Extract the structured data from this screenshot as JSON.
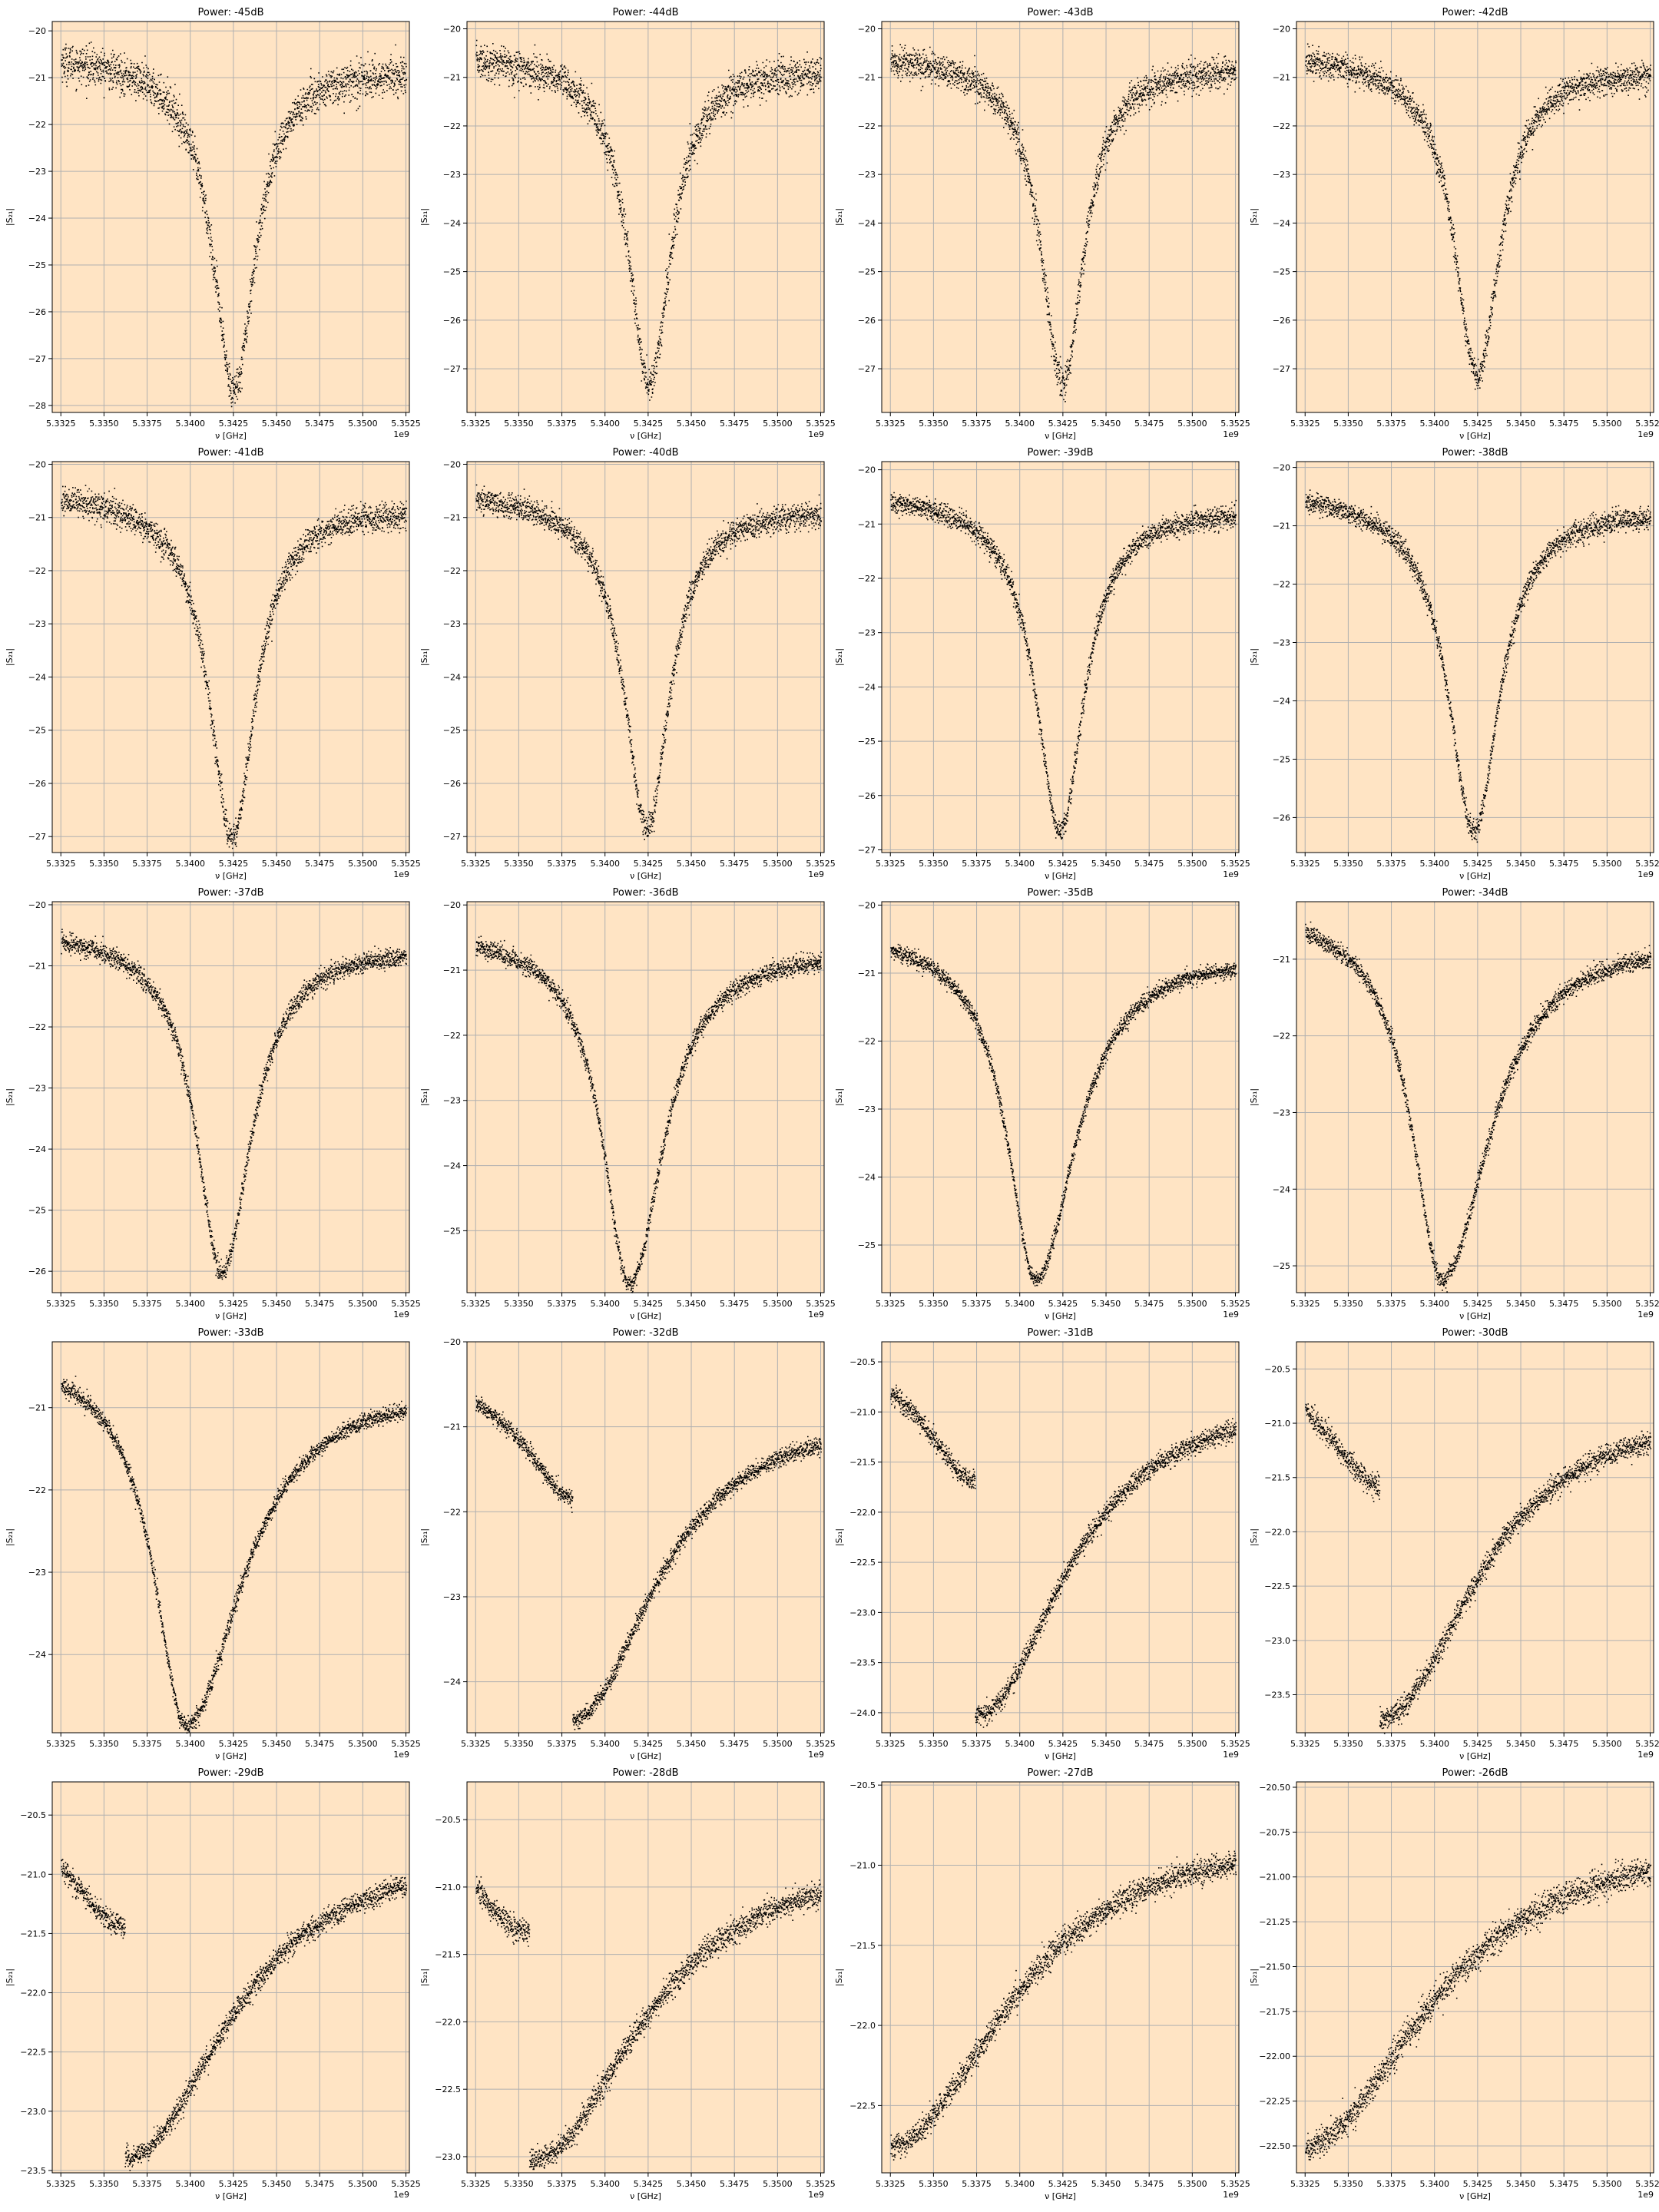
{
  "figure": {
    "background": "#ffffff",
    "axes_facecolor": "#ffe4c4",
    "marker_color": "#000000",
    "grid_color": "#b0b0b0"
  },
  "chart_data": [
    {
      "type": "scatter",
      "title": "Power: -45dB",
      "xlabel": "ν [GHz]",
      "ylabel": "|S₂₁|",
      "x_offset_label": "1e9",
      "xlim": [
        5332000000.0,
        5352700000.0
      ],
      "ylim": [
        -28.15,
        -19.8
      ],
      "xticks": [
        "5.3325",
        "5.3350",
        "5.3375",
        "5.3400",
        "5.3425",
        "5.3450",
        "5.3475",
        "5.3500",
        "5.3525"
      ],
      "yticks": [
        "-20",
        "-21",
        "-22",
        "-23",
        "-24",
        "-25",
        "-26",
        "-27",
        "-28"
      ],
      "model": {
        "f0": 5342500000.0,
        "hwhm": 1500000.0,
        "base_left": -20.5,
        "base_right": -20.8,
        "depth": 7.0,
        "noise": 0.2,
        "bifurcation": false
      },
      "grid": true
    },
    {
      "type": "scatter",
      "title": "Power: -44dB",
      "xlabel": "ν [GHz]",
      "ylabel": "|S₂₁|",
      "x_offset_label": "1e9",
      "xlim": [
        5332000000.0,
        5352700000.0
      ],
      "ylim": [
        -27.9,
        -19.85
      ],
      "xticks": [
        "5.3325",
        "5.3350",
        "5.3375",
        "5.3400",
        "5.3425",
        "5.3450",
        "5.3475",
        "5.3500",
        "5.3525"
      ],
      "yticks": [
        "-20",
        "-21",
        "-22",
        "-23",
        "-24",
        "-25",
        "-26",
        "-27"
      ],
      "model": {
        "f0": 5342550000.0,
        "hwhm": 1500000.0,
        "base_left": -20.5,
        "base_right": -20.75,
        "depth": 6.7,
        "noise": 0.18,
        "bifurcation": false
      },
      "grid": true
    },
    {
      "type": "scatter",
      "title": "Power: -43dB",
      "xlabel": "ν [GHz]",
      "ylabel": "|S₂₁|",
      "x_offset_label": "1e9",
      "xlim": [
        5332000000.0,
        5352700000.0
      ],
      "ylim": [
        -27.9,
        -19.85
      ],
      "xticks": [
        "5.3325",
        "5.3350",
        "5.3375",
        "5.3400",
        "5.3425",
        "5.3450",
        "5.3475",
        "5.3500",
        "5.3525"
      ],
      "yticks": [
        "-20",
        "-21",
        "-22",
        "-23",
        "-24",
        "-25",
        "-26",
        "-27"
      ],
      "model": {
        "f0": 5342450000.0,
        "hwhm": 1500000.0,
        "base_left": -20.5,
        "base_right": -20.75,
        "depth": 6.7,
        "noise": 0.16,
        "bifurcation": false
      },
      "grid": true
    },
    {
      "type": "scatter",
      "title": "Power: -42dB",
      "xlabel": "ν [GHz]",
      "ylabel": "|S₂₁|",
      "x_offset_label": "1e9",
      "xlim": [
        5332000000.0,
        5352700000.0
      ],
      "ylim": [
        -27.9,
        -19.85
      ],
      "xticks": [
        "5.3325",
        "5.3350",
        "5.3375",
        "5.3400",
        "5.3425",
        "5.3450",
        "5.3475",
        "5.3500",
        "5.3525"
      ],
      "yticks": [
        "-20",
        "-21",
        "-22",
        "-23",
        "-24",
        "-25",
        "-26",
        "-27"
      ],
      "model": {
        "f0": 5342450000.0,
        "hwhm": 1600000.0,
        "base_left": -20.5,
        "base_right": -20.8,
        "depth": 6.5,
        "noise": 0.15,
        "bifurcation": false
      },
      "grid": true
    },
    {
      "type": "scatter",
      "title": "Power: -41dB",
      "xlabel": "ν [GHz]",
      "ylabel": "|S₂₁|",
      "x_offset_label": "1e9",
      "xlim": [
        5332000000.0,
        5352700000.0
      ],
      "ylim": [
        -27.3,
        -19.95
      ],
      "xticks": [
        "5.3325",
        "5.3350",
        "5.3375",
        "5.3400",
        "5.3425",
        "5.3450",
        "5.3475",
        "5.3500",
        "5.3525"
      ],
      "yticks": [
        "-20",
        "-21",
        "-22",
        "-23",
        "-24",
        "-25",
        "-26",
        "-27"
      ],
      "model": {
        "f0": 5342400000.0,
        "hwhm": 1600000.0,
        "base_left": -20.5,
        "base_right": -20.8,
        "depth": 6.4,
        "noise": 0.13,
        "bifurcation": false
      },
      "grid": true
    },
    {
      "type": "scatter",
      "title": "Power: -40dB",
      "xlabel": "ν [GHz]",
      "ylabel": "|S₂₁|",
      "x_offset_label": "1e9",
      "xlim": [
        5332000000.0,
        5352700000.0
      ],
      "ylim": [
        -27.3,
        -19.95
      ],
      "xticks": [
        "5.3325",
        "5.3350",
        "5.3375",
        "5.3400",
        "5.3425",
        "5.3450",
        "5.3475",
        "5.3500",
        "5.3525"
      ],
      "yticks": [
        "-20",
        "-21",
        "-22",
        "-23",
        "-24",
        "-25",
        "-26",
        "-27"
      ],
      "model": {
        "f0": 5342400000.0,
        "hwhm": 1600000.0,
        "base_left": -20.5,
        "base_right": -20.8,
        "depth": 6.2,
        "noise": 0.12,
        "bifurcation": false
      },
      "grid": true
    },
    {
      "type": "scatter",
      "title": "Power: -39dB",
      "xlabel": "ν [GHz]",
      "ylabel": "|S₂₁|",
      "x_offset_label": "1e9",
      "xlim": [
        5332000000.0,
        5352700000.0
      ],
      "ylim": [
        -27.05,
        -19.85
      ],
      "xticks": [
        "5.3325",
        "5.3350",
        "5.3375",
        "5.3400",
        "5.3425",
        "5.3450",
        "5.3475",
        "5.3500",
        "5.3525"
      ],
      "yticks": [
        "-20",
        "-21",
        "-22",
        "-23",
        "-24",
        "-25",
        "-26",
        "-27"
      ],
      "model": {
        "f0": 5342300000.0,
        "hwhm": 1700000.0,
        "base_left": -20.4,
        "base_right": -20.7,
        "depth": 6.1,
        "noise": 0.1,
        "bifurcation": false
      },
      "grid": true
    },
    {
      "type": "scatter",
      "title": "Power: -38dB",
      "xlabel": "ν [GHz]",
      "ylabel": "|S₂₁|",
      "x_offset_label": "1e9",
      "xlim": [
        5332000000.0,
        5352700000.0
      ],
      "ylim": [
        -26.6,
        -19.9
      ],
      "xticks": [
        "5.3325",
        "5.3350",
        "5.3375",
        "5.3400",
        "5.3425",
        "5.3450",
        "5.3475",
        "5.3500",
        "5.3525"
      ],
      "yticks": [
        "-20",
        "-21",
        "-22",
        "-23",
        "-24",
        "-25",
        "-26"
      ],
      "model": {
        "f0": 5342250000.0,
        "hwhm": 1800000.0,
        "base_left": -20.4,
        "base_right": -20.7,
        "depth": 5.7,
        "noise": 0.09,
        "bifurcation": false
      },
      "grid": true
    },
    {
      "type": "scatter",
      "title": "Power: -37dB",
      "xlabel": "ν [GHz]",
      "ylabel": "|S₂₁|",
      "x_offset_label": "1e9",
      "xlim": [
        5332000000.0,
        5352700000.0
      ],
      "ylim": [
        -26.35,
        -19.95
      ],
      "xticks": [
        "5.3325",
        "5.3350",
        "5.3375",
        "5.3400",
        "5.3425",
        "5.3450",
        "5.3475",
        "5.3500",
        "5.3525"
      ],
      "yticks": [
        "-20",
        "-21",
        "-22",
        "-23",
        "-24",
        "-25",
        "-26"
      ],
      "model": {
        "f0": 5341800000.0,
        "hwhm": 1800000.0,
        "base_left": -20.4,
        "base_right": -20.65,
        "depth": 5.5,
        "noise": 0.08,
        "bifurcation": false,
        "skew": 0.3
      },
      "grid": true
    },
    {
      "type": "scatter",
      "title": "Power: -36dB",
      "xlabel": "ν [GHz]",
      "ylabel": "|S₂₁|",
      "x_offset_label": "1e9",
      "xlim": [
        5332000000.0,
        5352700000.0
      ],
      "ylim": [
        -25.95,
        -19.95
      ],
      "xticks": [
        "5.3325",
        "5.3350",
        "5.3375",
        "5.3400",
        "5.3425",
        "5.3450",
        "5.3475",
        "5.3500",
        "5.3525"
      ],
      "yticks": [
        "-20",
        "-21",
        "-22",
        "-23",
        "-24",
        "-25"
      ],
      "model": {
        "f0": 5341400000.0,
        "hwhm": 1900000.0,
        "base_left": -20.4,
        "base_right": -20.65,
        "depth": 5.3,
        "noise": 0.07,
        "bifurcation": false,
        "skew": 0.5
      },
      "grid": true
    },
    {
      "type": "scatter",
      "title": "Power: -35dB",
      "xlabel": "ν [GHz]",
      "ylabel": "|S₂₁|",
      "x_offset_label": "1e9",
      "xlim": [
        5332000000.0,
        5352700000.0
      ],
      "ylim": [
        -25.7,
        -19.95
      ],
      "xticks": [
        "5.3325",
        "5.3350",
        "5.3375",
        "5.3400",
        "5.3425",
        "5.3450",
        "5.3475",
        "5.3500",
        "5.3525"
      ],
      "yticks": [
        "-20",
        "-21",
        "-22",
        "-23",
        "-24",
        "-25"
      ],
      "model": {
        "f0": 5340900000.0,
        "hwhm": 2000000.0,
        "base_left": -20.4,
        "base_right": -20.65,
        "depth": 5.0,
        "noise": 0.06,
        "bifurcation": false,
        "skew": 0.8
      },
      "grid": true
    },
    {
      "type": "scatter",
      "title": "Power: -34dB",
      "xlabel": "ν [GHz]",
      "ylabel": "|S₂₁|",
      "x_offset_label": "1e9",
      "xlim": [
        5332000000.0,
        5352700000.0
      ],
      "ylim": [
        -25.35,
        -20.25
      ],
      "xticks": [
        "5.3325",
        "5.3350",
        "5.3375",
        "5.3400",
        "5.3425",
        "5.3450",
        "5.3475",
        "5.3500",
        "5.3525"
      ],
      "yticks": [
        "-21",
        "-22",
        "-23",
        "-24",
        "-25"
      ],
      "model": {
        "f0": 5340400000.0,
        "hwhm": 2100000.0,
        "base_left": -20.35,
        "base_right": -20.65,
        "depth": 4.7,
        "noise": 0.06,
        "bifurcation": false,
        "skew": 1.2
      },
      "grid": true
    },
    {
      "type": "scatter",
      "title": "Power: -33dB",
      "xlabel": "ν [GHz]",
      "ylabel": "|S₂₁|",
      "x_offset_label": "1e9",
      "xlim": [
        5332000000.0,
        5352700000.0
      ],
      "ylim": [
        -24.95,
        -20.2
      ],
      "xticks": [
        "5.3325",
        "5.3350",
        "5.3375",
        "5.3400",
        "5.3425",
        "5.3450",
        "5.3475",
        "5.3500",
        "5.3525"
      ],
      "yticks": [
        "-21",
        "-22",
        "-23",
        "-24"
      ],
      "model": {
        "f0": 5339700000.0,
        "hwhm": 2200000.0,
        "base_left": -20.35,
        "base_right": -20.65,
        "depth": 4.4,
        "noise": 0.05,
        "bifurcation": false,
        "skew": 1.6
      },
      "grid": true
    },
    {
      "type": "scatter",
      "title": "Power: -32dB",
      "xlabel": "ν [GHz]",
      "ylabel": "|S₂₁|",
      "x_offset_label": "1e9",
      "xlim": [
        5332000000.0,
        5352700000.0
      ],
      "ylim": [
        -24.6,
        -20.0
      ],
      "xticks": [
        "5.3325",
        "5.3350",
        "5.3375",
        "5.3400",
        "5.3425",
        "5.3450",
        "5.3475",
        "5.3500",
        "5.3525"
      ],
      "yticks": [
        "-20",
        "-21",
        "-22",
        "-23",
        "-24"
      ],
      "model": {
        "f0": 5339000000.0,
        "hwhm": 2400000.0,
        "base_left": -20.35,
        "base_right": -20.65,
        "depth": 4.0,
        "noise": 0.05,
        "bifurcation": true,
        "jump": 5338100000.0
      },
      "grid": true
    },
    {
      "type": "scatter",
      "title": "Power: -31dB",
      "xlabel": "ν [GHz]",
      "ylabel": "|S₂₁|",
      "x_offset_label": "1e9",
      "xlim": [
        5332000000.0,
        5352700000.0
      ],
      "ylim": [
        -24.2,
        -20.3
      ],
      "xticks": [
        "5.3325",
        "5.3350",
        "5.3375",
        "5.3400",
        "5.3425",
        "5.3450",
        "5.3475",
        "5.3500",
        "5.3525"
      ],
      "yticks": [
        "-20.5",
        "-21.0",
        "-21.5",
        "-22.0",
        "-22.5",
        "-23.0",
        "-23.5",
        "-24.0"
      ],
      "model": {
        "f0": 5338200000.0,
        "hwhm": 2600000.0,
        "base_left": -20.35,
        "base_right": -20.65,
        "depth": 3.6,
        "noise": 0.05,
        "bifurcation": true,
        "jump": 5337400000.0
      },
      "grid": true
    },
    {
      "type": "scatter",
      "title": "Power: -30dB",
      "xlabel": "ν [GHz]",
      "ylabel": "|S₂₁|",
      "x_offset_label": "1e9",
      "xlim": [
        5332000000.0,
        5352700000.0
      ],
      "ylim": [
        -23.85,
        -20.25
      ],
      "xticks": [
        "5.3325",
        "5.3350",
        "5.3375",
        "5.3400",
        "5.3425",
        "5.3450",
        "5.3475",
        "5.3500",
        "5.3525"
      ],
      "yticks": [
        "-20.5",
        "-21.0",
        "-21.5",
        "-22.0",
        "-22.5",
        "-23.0",
        "-23.5"
      ],
      "model": {
        "f0": 5337600000.0,
        "hwhm": 2800000.0,
        "base_left": -20.35,
        "base_right": -20.65,
        "depth": 3.3,
        "noise": 0.05,
        "bifurcation": true,
        "jump": 5336800000.0
      },
      "grid": true
    },
    {
      "type": "scatter",
      "title": "Power: -29dB",
      "xlabel": "ν [GHz]",
      "ylabel": "|S₂₁|",
      "x_offset_label": "1e9",
      "xlim": [
        5332000000.0,
        5352700000.0
      ],
      "ylim": [
        -23.52,
        -20.22
      ],
      "xticks": [
        "5.3325",
        "5.3350",
        "5.3375",
        "5.3400",
        "5.3425",
        "5.3450",
        "5.3475",
        "5.3500",
        "5.3525"
      ],
      "yticks": [
        "-20.5",
        "-21.0",
        "-21.5",
        "-22.0",
        "-22.5",
        "-23.0",
        "-23.5"
      ],
      "model": {
        "f0": 5337000000.0,
        "hwhm": 3000000.0,
        "base_left": -20.35,
        "base_right": -20.6,
        "depth": 3.0,
        "noise": 0.045,
        "bifurcation": true,
        "jump": 5336200000.0
      },
      "grid": true
    },
    {
      "type": "scatter",
      "title": "Power: -28dB",
      "xlabel": "ν [GHz]",
      "ylabel": "|S₂₁|",
      "x_offset_label": "1e9",
      "xlim": [
        5332000000.0,
        5352700000.0
      ],
      "ylim": [
        -23.12,
        -20.22
      ],
      "xticks": [
        "5.3325",
        "5.3350",
        "5.3375",
        "5.3400",
        "5.3425",
        "5.3450",
        "5.3475",
        "5.3500",
        "5.3525"
      ],
      "yticks": [
        "-20.5",
        "-21.0",
        "-21.5",
        "-22.0",
        "-22.5",
        "-23.0"
      ],
      "model": {
        "f0": 5336400000.0,
        "hwhm": 3200000.0,
        "base_left": -20.4,
        "base_right": -20.6,
        "depth": 2.6,
        "noise": 0.045,
        "bifurcation": true,
        "jump": 5335600000.0
      },
      "grid": true
    },
    {
      "type": "scatter",
      "title": "Power: -27dB",
      "xlabel": "ν [GHz]",
      "ylabel": "|S₂₁|",
      "x_offset_label": "1e9",
      "xlim": [
        5332000000.0,
        5352700000.0
      ],
      "ylim": [
        -22.92,
        -20.48
      ],
      "xticks": [
        "5.3325",
        "5.3350",
        "5.3375",
        "5.3400",
        "5.3425",
        "5.3450",
        "5.3475",
        "5.3500",
        "5.3525"
      ],
      "yticks": [
        "-20.5",
        "-21.0",
        "-21.5",
        "-22.0",
        "-22.5"
      ],
      "model": {
        "f0": 5332500000.0,
        "hwhm": 3600000.0,
        "base_left": -20.4,
        "base_right": -20.62,
        "depth": 2.35,
        "noise": 0.04,
        "bifurcation": true,
        "jump": 5332200000.0
      },
      "grid": true
    },
    {
      "type": "scatter",
      "title": "Power: -26dB",
      "xlabel": "ν [GHz]",
      "ylabel": "|S₂₁|",
      "x_offset_label": "1e9",
      "xlim": [
        5332000000.0,
        5352700000.0
      ],
      "ylim": [
        -22.65,
        -20.47
      ],
      "xticks": [
        "5.3325",
        "5.3350",
        "5.3375",
        "5.3400",
        "5.3425",
        "5.3450",
        "5.3475",
        "5.3500",
        "5.3525"
      ],
      "yticks": [
        "-20.50",
        "-20.75",
        "-21.00",
        "-21.25",
        "-21.50",
        "-21.75",
        "-22.00",
        "-22.25",
        "-22.50"
      ],
      "model": {
        "f0": 5332000000.0,
        "hwhm": 3800000.0,
        "base_left": -20.4,
        "base_right": -20.62,
        "depth": 2.1,
        "noise": 0.04,
        "bifurcation": true,
        "jump": 5332100000.0
      },
      "grid": true
    }
  ]
}
